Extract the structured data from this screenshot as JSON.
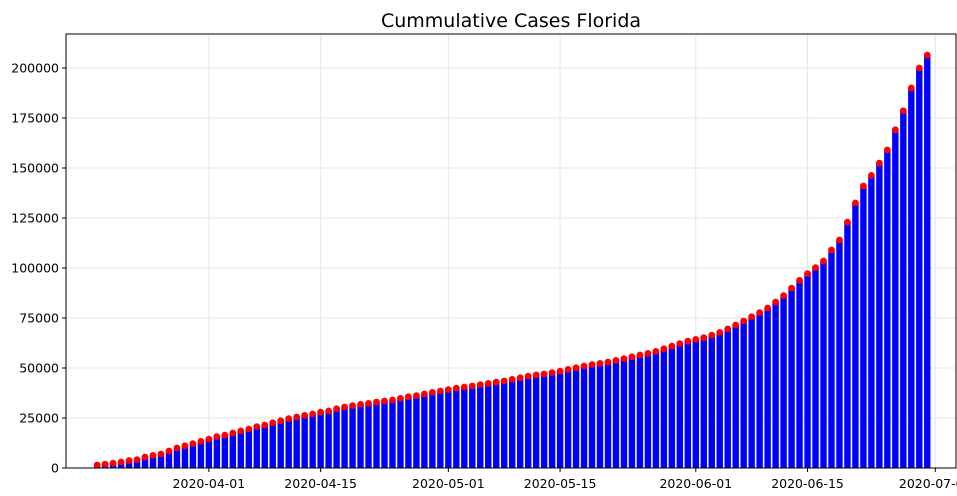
{
  "chart_data": {
    "type": "bar",
    "title": "Cummulative Cases Florida",
    "xlabel": "",
    "ylabel": "",
    "x_start": "2020-03-18",
    "x_end": "2020-07-05",
    "ylim": [
      0,
      217000
    ],
    "yticks": [
      0,
      25000,
      50000,
      75000,
      100000,
      125000,
      150000,
      175000,
      200000
    ],
    "xticks": [
      "2020-04-01",
      "2020-04-15",
      "2020-05-01",
      "2020-05-15",
      "2020-06-01",
      "2020-06-15",
      "2020-07-01"
    ],
    "grid": true,
    "bar_color": "#0000ff",
    "marker_color": "#ff0000",
    "values": [
      1500,
      1900,
      2400,
      3000,
      3700,
      4200,
      5500,
      6300,
      7000,
      8500,
      10000,
      11100,
      12200,
      13300,
      14400,
      15700,
      16400,
      17500,
      18500,
      19500,
      20700,
      21500,
      22600,
      23600,
      24700,
      25500,
      26300,
      27000,
      27900,
      28500,
      29600,
      30500,
      31200,
      31800,
      32300,
      33000,
      33500,
      34000,
      34800,
      35600,
      36200,
      37000,
      37800,
      38500,
      39200,
      39900,
      40500,
      41000,
      41700,
      42300,
      42900,
      43500,
      44300,
      45100,
      45900,
      46500,
      47000,
      47700,
      48400,
      49300,
      50100,
      51000,
      51700,
      52300,
      53000,
      53800,
      54700,
      55600,
      56500,
      57300,
      58300,
      59600,
      60900,
      62200,
      63400,
      64300,
      65200,
      66400,
      67800,
      69500,
      71500,
      73500,
      75600,
      77700,
      80000,
      83000,
      86200,
      89900,
      93800,
      97200,
      100200,
      103500,
      109000,
      114000,
      122900,
      132500,
      141000,
      146300,
      152400,
      159000,
      169100,
      178600,
      190000,
      200000,
      206400
    ]
  }
}
